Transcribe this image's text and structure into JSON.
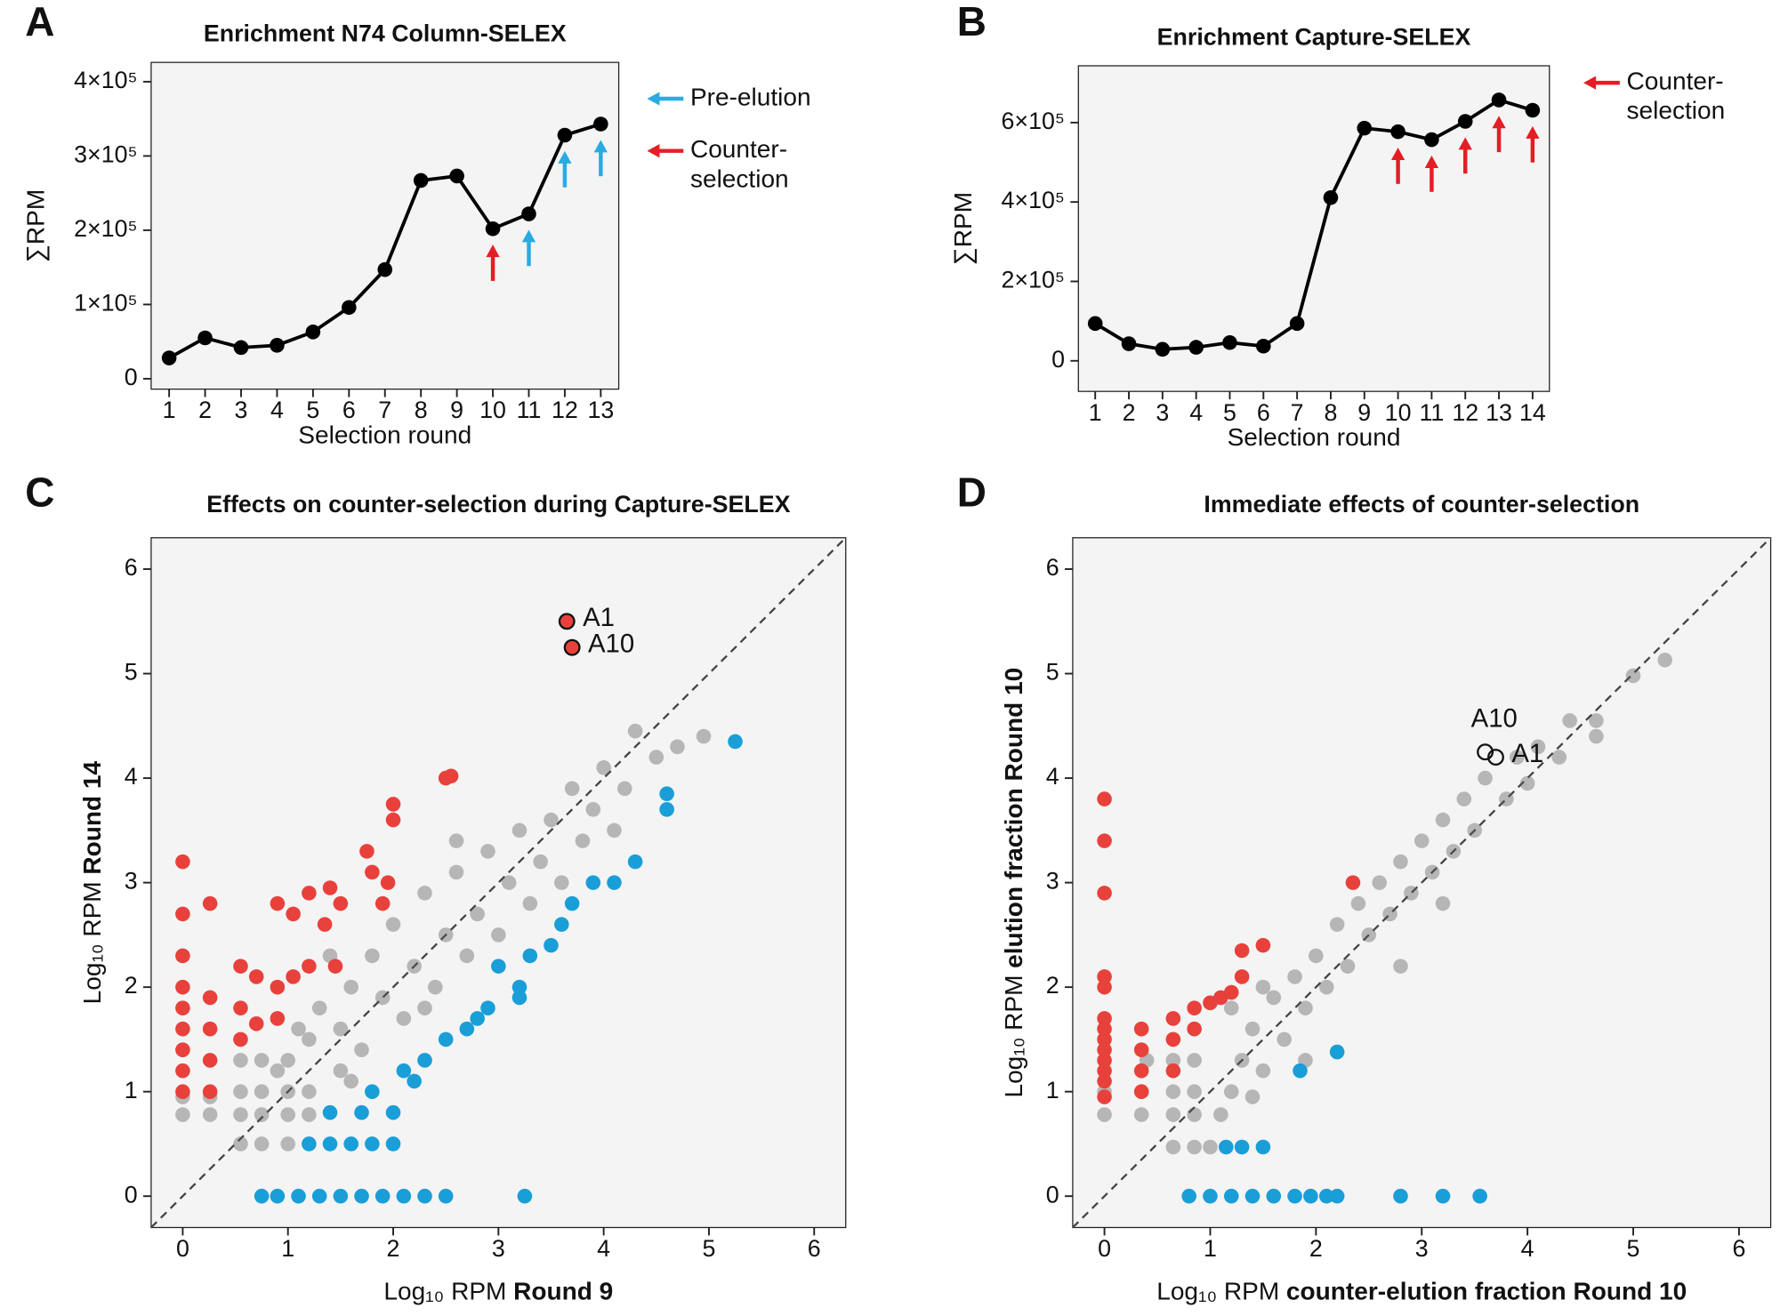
{
  "chart_data": [
    {
      "type": "line",
      "panel": "A",
      "title": "Enrichment N74 Column-SELEX",
      "x": [
        1,
        2,
        3,
        4,
        5,
        6,
        7,
        8,
        9,
        10,
        11,
        12,
        13
      ],
      "values": [
        28000,
        55000,
        42000,
        45000,
        63000,
        96000,
        147000,
        267000,
        273000,
        202000,
        222000,
        328000,
        343000
      ],
      "color": "#000000",
      "xlim": [
        0.5,
        13.5
      ],
      "ylim": [
        -14000,
        426000
      ],
      "xticks": [
        1,
        2,
        3,
        4,
        5,
        6,
        7,
        8,
        9,
        10,
        11,
        12,
        13
      ],
      "yticks": [
        0,
        {
          "value": 100000,
          "label": "1×10⁵"
        },
        {
          "value": 200000,
          "label": "2×10⁵"
        },
        {
          "value": 300000,
          "label": "3×10⁵"
        },
        {
          "value": 400000,
          "label": "4×10⁵"
        }
      ],
      "xlabel": "Selection round",
      "ylabel": "∑RPM",
      "arrows": [
        {
          "name": [
            "Pre-elution"
          ],
          "color": "#29abe2",
          "x": [
            11,
            12,
            13
          ]
        },
        {
          "name": [
            "Counter-",
            "selection"
          ],
          "color": "#e31e24",
          "x": [
            10
          ]
        }
      ]
    },
    {
      "type": "line",
      "panel": "B",
      "title": "Enrichment Capture-SELEX",
      "x": [
        1,
        2,
        3,
        4,
        5,
        6,
        7,
        8,
        9,
        10,
        11,
        12,
        13,
        14
      ],
      "values": [
        94000,
        43000,
        29000,
        34000,
        46000,
        37000,
        94000,
        411000,
        586000,
        577000,
        557000,
        603000,
        657000,
        631000
      ],
      "color": "#000000",
      "xlim": [
        0.5,
        14.5
      ],
      "ylim": [
        -77000,
        743000
      ],
      "xticks": [
        1,
        2,
        3,
        4,
        5,
        6,
        7,
        8,
        9,
        10,
        11,
        12,
        13,
        14
      ],
      "yticks": [
        0,
        {
          "value": 200000,
          "label": "2×10⁵"
        },
        {
          "value": 400000,
          "label": "4×10⁵"
        },
        {
          "value": 600000,
          "label": "6×10⁵"
        }
      ],
      "xlabel": "Selection round",
      "ylabel": "∑RPM",
      "arrows": [
        {
          "name": [
            "Counter-",
            "selection"
          ],
          "color": "#e31e24",
          "x": [
            10,
            11,
            12,
            13,
            14
          ]
        }
      ]
    },
    {
      "type": "scatter",
      "panel": "C",
      "title": "Effects on counter-selection during Capture-SELEX",
      "xlim": [
        -0.3,
        6.3
      ],
      "ylim": [
        -0.3,
        6.3
      ],
      "xticks": [
        0,
        1,
        2,
        3,
        4,
        5,
        6
      ],
      "yticks": [
        0,
        1,
        2,
        3,
        4,
        5,
        6
      ],
      "xlabel": [
        "Log₁₀ RPM",
        "Round 9"
      ],
      "ylabel": [
        "Log₁₀ RPM",
        "Round 14"
      ],
      "diagonal": true,
      "series": [
        {
          "color": "#5a5a5a",
          "x": [
            0,
            0,
            0.26,
            0.26,
            0.55,
            0.55,
            0.55,
            0.55,
            0.75,
            0.75,
            0.75,
            0.75,
            1.0,
            1.0,
            1.0,
            1.0,
            1.2,
            1.2,
            1.2,
            1.3,
            1.5,
            1.5,
            1.6,
            1.7,
            1.8,
            1.9,
            2.0,
            2.1,
            2.2,
            2.3,
            2.4,
            2.5,
            2.6,
            2.7,
            2.8,
            2.9,
            3.0,
            3.1,
            3.2,
            3.3,
            3.4,
            3.5,
            3.6,
            3.7,
            3.8,
            3.9,
            4.0,
            4.1,
            4.2,
            4.3,
            4.5,
            4.7,
            4.95,
            1.4,
            2.6,
            1.1,
            0.9,
            1.6,
            2.3
          ],
          "values": [
            0.78,
            0.95,
            0.78,
            0.95,
            0.5,
            0.78,
            1.0,
            1.3,
            0.5,
            0.78,
            1.0,
            1.3,
            0.5,
            0.78,
            1.0,
            1.3,
            0.78,
            1.0,
            1.5,
            1.8,
            1.2,
            1.6,
            2.0,
            1.4,
            2.3,
            1.9,
            2.6,
            1.7,
            2.2,
            2.9,
            2.0,
            2.5,
            3.1,
            2.3,
            2.7,
            3.3,
            2.5,
            3.0,
            3.5,
            2.8,
            3.2,
            3.6,
            3.0,
            3.9,
            3.4,
            3.7,
            4.1,
            3.5,
            3.9,
            4.45,
            4.2,
            4.3,
            4.4,
            2.3,
            3.4,
            1.6,
            1.2,
            1.1,
            1.8
          ]
        },
        {
          "color": "#1a9ed8",
          "x": [
            0.75,
            0.9,
            1.1,
            1.3,
            1.5,
            1.7,
            1.9,
            2.1,
            2.3,
            2.5,
            3.25,
            1.2,
            1.4,
            1.6,
            1.8,
            2.0,
            1.4,
            1.7,
            2.0,
            1.8,
            2.1,
            2.3,
            2.5,
            2.7,
            2.9,
            3.2,
            3.3,
            3.5,
            3.7,
            3.9,
            4.1,
            4.3,
            4.6,
            4.6,
            5.25,
            3.2,
            2.8,
            2.2,
            3.0,
            3.6
          ],
          "values": [
            0,
            0,
            0,
            0,
            0,
            0,
            0,
            0,
            0,
            0,
            0,
            0.5,
            0.5,
            0.5,
            0.5,
            0.5,
            0.8,
            0.8,
            0.8,
            1.0,
            1.2,
            1.3,
            1.5,
            1.6,
            1.8,
            2.0,
            2.3,
            2.4,
            2.8,
            3.0,
            3.0,
            3.2,
            3.7,
            3.85,
            4.35,
            1.9,
            1.7,
            1.1,
            2.2,
            2.6
          ]
        },
        {
          "color": "#e8413c",
          "x": [
            0,
            0,
            0,
            0,
            0,
            0,
            0,
            0,
            0,
            0.26,
            0.26,
            0.26,
            0.26,
            0.26,
            0.55,
            0.55,
            0.55,
            0.7,
            0.7,
            0.9,
            0.9,
            0.9,
            1.05,
            1.05,
            1.2,
            1.2,
            1.35,
            1.4,
            1.45,
            1.5,
            1.75,
            1.8,
            1.9,
            1.95,
            2.0,
            2.0,
            2.5,
            2.55
          ],
          "values": [
            1.0,
            1.2,
            1.4,
            1.6,
            1.8,
            2.0,
            2.3,
            2.7,
            3.2,
            1.0,
            1.3,
            1.6,
            1.9,
            2.8,
            1.5,
            1.8,
            2.2,
            1.65,
            2.1,
            1.7,
            2.0,
            2.8,
            2.1,
            2.7,
            2.2,
            2.9,
            2.6,
            2.95,
            2.2,
            2.8,
            3.3,
            3.1,
            2.8,
            3.0,
            3.75,
            3.6,
            4.0,
            4.02
          ]
        }
      ],
      "annotations": [
        {
          "text": "A1",
          "x": 3.65,
          "y": 5.5,
          "color": "#e8413c"
        },
        {
          "text": "A10",
          "x": 3.7,
          "y": 5.25,
          "color": "#e8413c"
        }
      ]
    },
    {
      "type": "scatter",
      "panel": "D",
      "title": "Immediate effects of counter-selection",
      "xlim": [
        -0.3,
        6.3
      ],
      "ylim": [
        -0.3,
        6.3
      ],
      "xticks": [
        0,
        1,
        2,
        3,
        4,
        5,
        6
      ],
      "yticks": [
        0,
        1,
        2,
        3,
        4,
        5,
        6
      ],
      "xlabel": [
        "Log₁₀ RPM",
        "counter-elution fraction Round 10"
      ],
      "ylabel": [
        "Log₁₀ RPM",
        "elution fraction Round 10"
      ],
      "diagonal": true,
      "series": [
        {
          "color": "#5a5a5a",
          "x": [
            0,
            0,
            0.35,
            0.35,
            0.4,
            0.65,
            0.65,
            0.65,
            0.65,
            0.85,
            0.85,
            0.85,
            0.85,
            1.0,
            1.1,
            1.2,
            1.3,
            1.4,
            1.5,
            1.6,
            1.7,
            1.8,
            1.9,
            2.0,
            2.1,
            2.2,
            2.3,
            2.4,
            2.5,
            2.6,
            2.7,
            2.8,
            2.9,
            3.0,
            3.1,
            3.2,
            3.3,
            3.4,
            3.5,
            3.6,
            3.8,
            3.9,
            4.0,
            4.1,
            4.3,
            4.4,
            4.65,
            4.65,
            5.0,
            5.3,
            1.4,
            1.9,
            2.8,
            3.2,
            1.2,
            1.5
          ],
          "values": [
            0.78,
            1.0,
            0.78,
            1.0,
            1.3,
            0.47,
            0.78,
            1.0,
            1.3,
            0.47,
            0.78,
            1.0,
            1.3,
            0.47,
            0.78,
            1.0,
            1.3,
            1.6,
            1.2,
            1.9,
            1.5,
            2.1,
            1.8,
            2.3,
            2.0,
            2.6,
            2.2,
            2.8,
            2.5,
            3.0,
            2.7,
            3.2,
            2.9,
            3.4,
            3.1,
            3.6,
            3.3,
            3.8,
            3.5,
            4.0,
            3.8,
            4.2,
            3.95,
            4.3,
            4.2,
            4.55,
            4.4,
            4.55,
            4.98,
            5.13,
            0.95,
            1.3,
            2.2,
            2.8,
            1.8,
            2.0
          ]
        },
        {
          "color": "#1a9ed8",
          "x": [
            0.8,
            1.0,
            1.2,
            1.4,
            1.6,
            1.8,
            1.95,
            2.1,
            2.2,
            2.8,
            3.2,
            3.55,
            1.15,
            1.3,
            1.5,
            1.85,
            2.2
          ],
          "values": [
            0,
            0,
            0,
            0,
            0,
            0,
            0,
            0,
            0,
            0,
            0,
            0,
            0.47,
            0.47,
            0.47,
            1.2,
            1.38
          ]
        },
        {
          "color": "#e8413c",
          "x": [
            0,
            0,
            0,
            0,
            0,
            0,
            0,
            0,
            0,
            0,
            0,
            0,
            0,
            0.35,
            0.35,
            0.35,
            0.35,
            0.65,
            0.65,
            0.65,
            0.85,
            0.85,
            1.0,
            1.1,
            1.2,
            1.3,
            1.3,
            1.5,
            2.35
          ],
          "values": [
            0.95,
            1.1,
            1.2,
            1.3,
            1.4,
            1.5,
            1.6,
            1.7,
            2.0,
            2.1,
            2.9,
            3.4,
            3.8,
            1.0,
            1.2,
            1.4,
            1.6,
            1.2,
            1.5,
            1.7,
            1.6,
            1.8,
            1.85,
            1.9,
            1.95,
            2.1,
            2.35,
            2.4,
            3.0
          ]
        }
      ],
      "annotations": [
        {
          "text": "A10",
          "x": 3.6,
          "y": 4.25,
          "color": "none"
        },
        {
          "text": "A1",
          "x": 3.7,
          "y": 4.2,
          "color": "none"
        }
      ]
    }
  ]
}
